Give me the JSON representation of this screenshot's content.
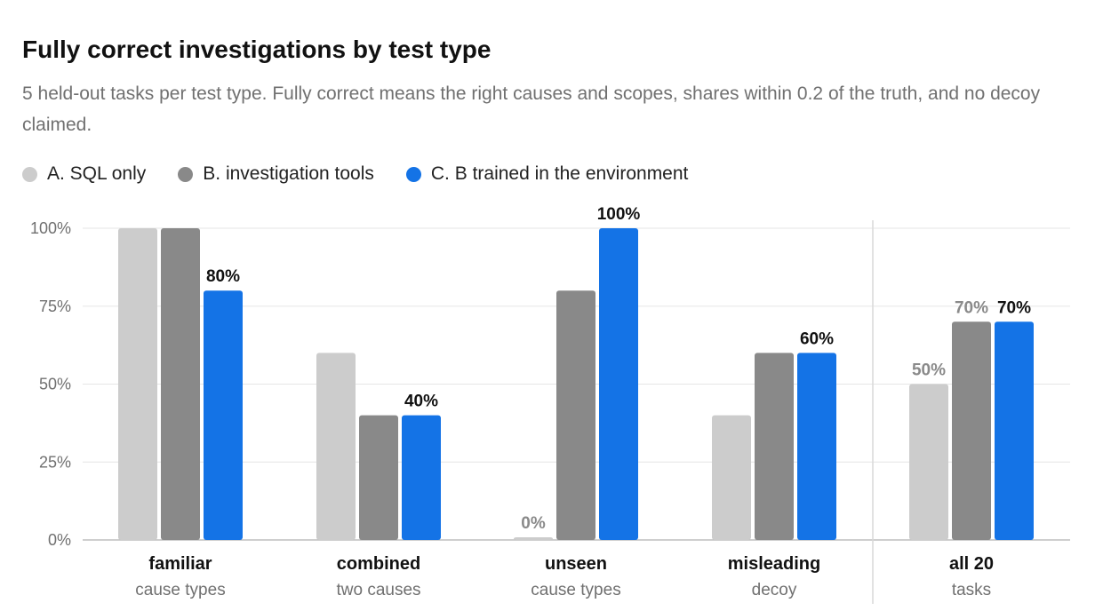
{
  "chart_data": {
    "type": "bar",
    "title": "Fully correct investigations by test type",
    "subtitle": "5 held-out tasks per test type. Fully correct means the right causes and scopes, shares within 0.2 of the truth, and no decoy claimed.",
    "xlabel": "",
    "ylabel": "",
    "ylim": [
      0,
      100
    ],
    "yticks": [
      0,
      25,
      50,
      75,
      100
    ],
    "ytick_labels": [
      "0%",
      "25%",
      "50%",
      "75%",
      "100%"
    ],
    "grid": true,
    "legend_position": "top-left",
    "categories": [
      {
        "label": "familiar",
        "sublabel": "cause types"
      },
      {
        "label": "combined",
        "sublabel": "two causes"
      },
      {
        "label": "unseen",
        "sublabel": "cause types"
      },
      {
        "label": "misleading",
        "sublabel": "decoy"
      },
      {
        "label": "all 20",
        "sublabel": "tasks"
      }
    ],
    "series": [
      {
        "name": "A. SQL only",
        "color": "#cccccc",
        "values": [
          100,
          60,
          0,
          40,
          50
        ]
      },
      {
        "name": "B. investigation tools",
        "color": "#898989",
        "values": [
          100,
          40,
          80,
          60,
          70
        ]
      },
      {
        "name": "C. B trained in the environment",
        "color": "#1473e6",
        "values": [
          80,
          40,
          100,
          60,
          70
        ]
      }
    ],
    "data_labels": [
      [
        null,
        null,
        "0%",
        null,
        "50%"
      ],
      [
        null,
        null,
        null,
        null,
        "70%"
      ],
      [
        "80%",
        "40%",
        "100%",
        "60%",
        "70%"
      ]
    ],
    "label_colors": [
      "#8a8a8a",
      "#8a8a8a",
      "#111111"
    ]
  }
}
